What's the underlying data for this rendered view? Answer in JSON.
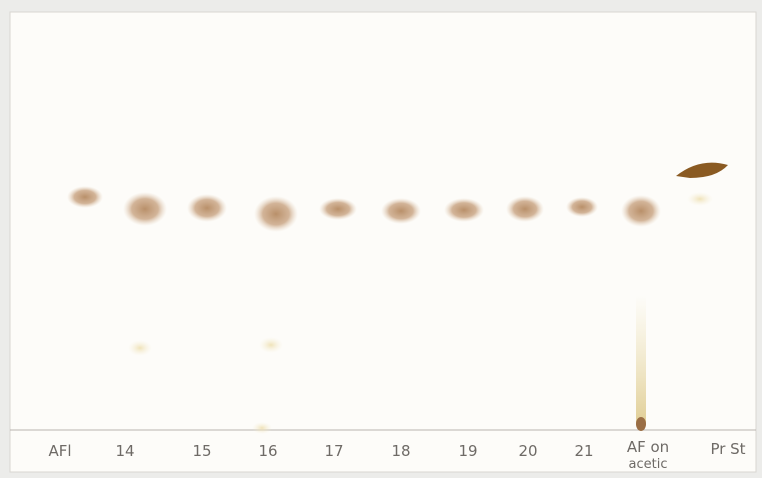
{
  "lanes": [
    "AFl",
    "14",
    "15",
    "16",
    "17",
    "18",
    "19",
    "20",
    "21",
    "AF on",
    "Pr St"
  ],
  "lane_note": "acetic"
}
